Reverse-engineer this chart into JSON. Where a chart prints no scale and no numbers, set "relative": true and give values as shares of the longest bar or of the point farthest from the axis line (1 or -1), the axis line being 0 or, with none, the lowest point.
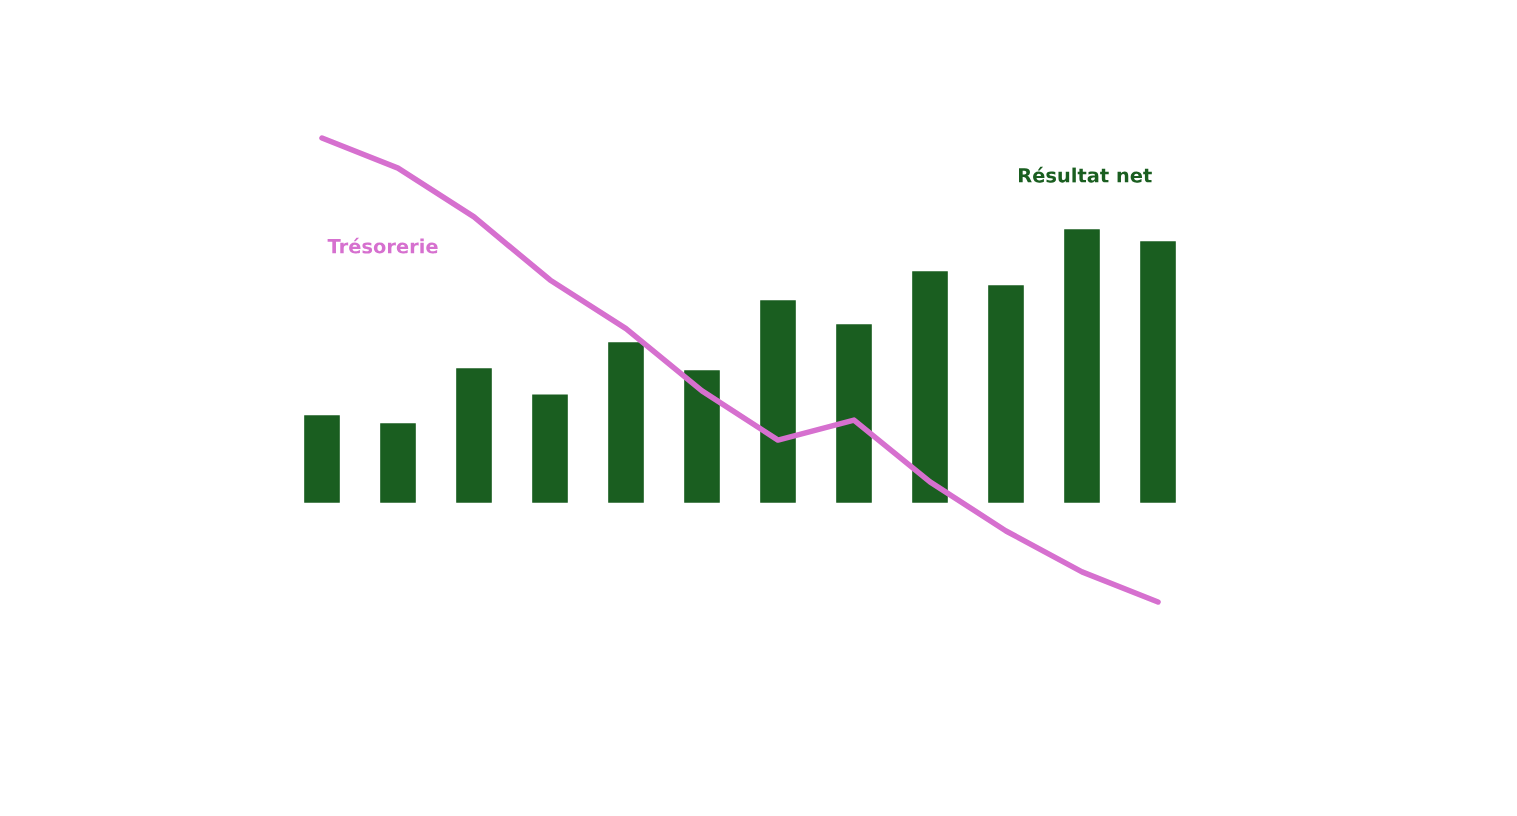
{
  "chart_data": [
    {
      "type": "bar",
      "relative": true,
      "categories": [
        null,
        null,
        null,
        null,
        null,
        null,
        null,
        null,
        null,
        null,
        null,
        null
      ],
      "series": [
        {
          "name": "Résultat net",
          "color": "#1a5e20",
          "values": [
            0.316,
            0.287,
            0.489,
            0.393,
            0.585,
            0.482,
            0.739,
            0.651,
            0.846,
            0.794,
            1.0,
            0.956
          ]
        }
      ]
    },
    {
      "type": "line",
      "relative": true,
      "categories": [
        null,
        null,
        null,
        null,
        null,
        null,
        null,
        null,
        null,
        null,
        null,
        null
      ],
      "series": [
        {
          "name": "Trésorerie",
          "color": "#d670cf",
          "values": [
            1.0,
            0.935,
            0.83,
            0.694,
            0.589,
            0.455,
            0.349,
            0.392,
            0.259,
            0.153,
            0.065,
            0.0
          ]
        }
      ]
    }
  ]
}
